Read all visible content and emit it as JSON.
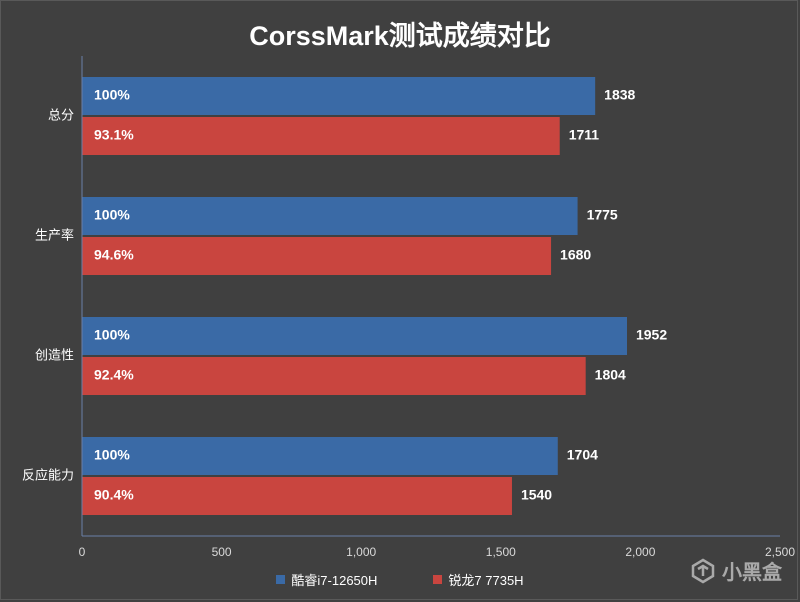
{
  "chart_data": {
    "type": "bar",
    "orientation": "horizontal",
    "title": "CorssMark测试成绩对比",
    "categories": [
      "总分",
      "生产率",
      "创造性",
      "反应能力"
    ],
    "series": [
      {
        "name": "酷睿i7-12650H",
        "color": "#3a6aa6",
        "values": [
          1838,
          1775,
          1952,
          1704
        ],
        "percent_labels": [
          "100%",
          "100%",
          "100%",
          "100%"
        ]
      },
      {
        "name": "锐龙7 7735H",
        "color": "#c9453f",
        "values": [
          1711,
          1680,
          1804,
          1540
        ],
        "percent_labels": [
          "93.1%",
          "94.6%",
          "92.4%",
          "90.4%"
        ]
      }
    ],
    "xlim": [
      0,
      2500
    ],
    "xticks": [
      0,
      500,
      1000,
      1500,
      2000,
      2500
    ],
    "xtick_labels": [
      "0",
      "500",
      "1,000",
      "1,500",
      "2,000",
      "2,500"
    ],
    "grid": false,
    "legend_position": "bottom"
  },
  "watermark": {
    "text": "小黑盒",
    "icon": "xiaoheihe-logo-icon"
  }
}
